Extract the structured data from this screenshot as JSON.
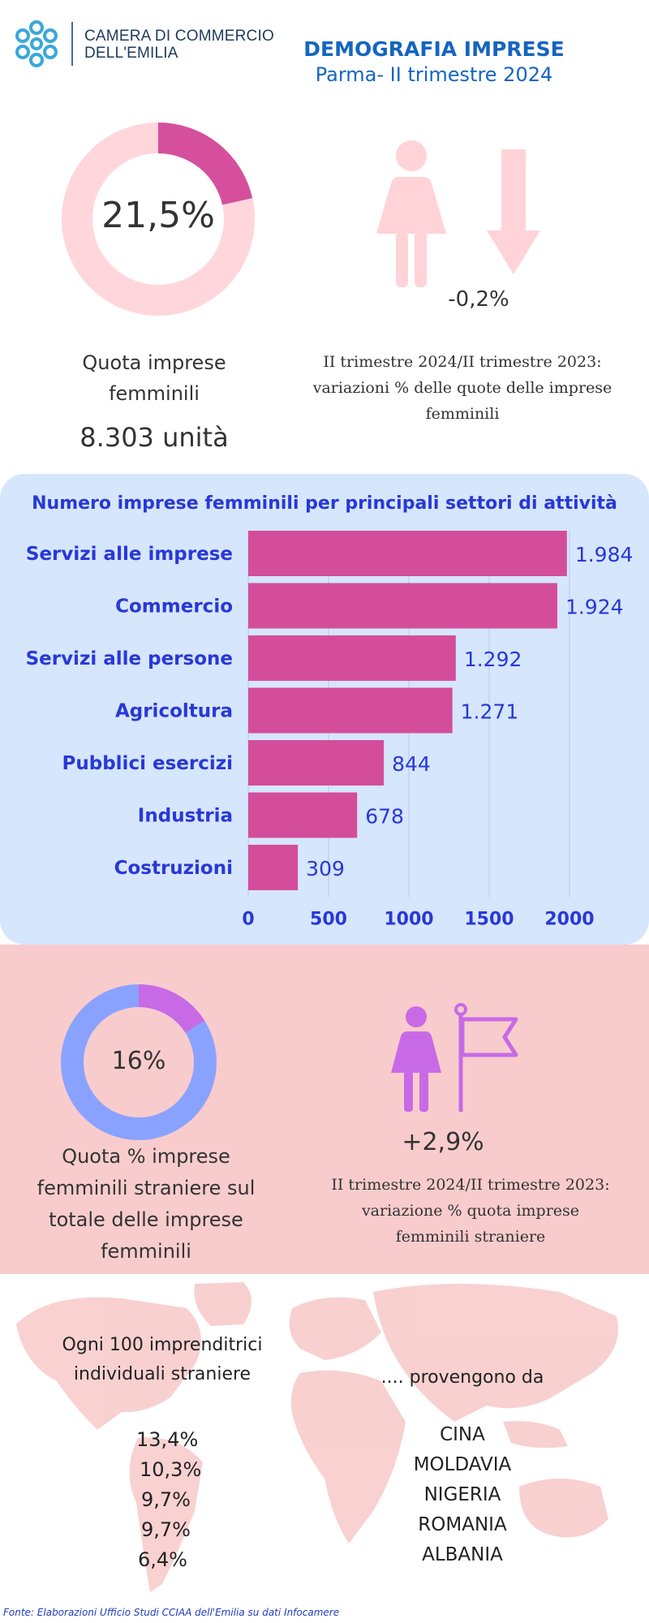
{
  "header": {
    "org_line1": "CAMERA DI COMMERCIO",
    "org_line2": "DELL'EMILIA",
    "title": "DEMOGRAFIA IMPRESE",
    "subtitle": "Parma- II trimestre 2024"
  },
  "female_share": {
    "value_text": "21,5%",
    "value": 21.5,
    "caption_line1": "Quota imprese",
    "caption_line2": "femminili",
    "units": "8.303 unità",
    "ring_color": "#d64f9c",
    "ring_bg": "#ffd6dc"
  },
  "female_change": {
    "delta": "-0,2%",
    "caption_line1": "II trimestre 2024/II trimestre 2023:",
    "caption_line2": "variazioni % delle quote delle imprese",
    "caption_line3": "femminili",
    "icon_color": "#ffd3d8"
  },
  "chart_data": {
    "type": "bar",
    "orientation": "horizontal",
    "title": "Numero imprese femminili per principali settori di attività",
    "categories": [
      "Servizi alle imprese",
      "Commercio",
      "Servizi alle persone",
      "Agricoltura",
      "Pubblici esercizi",
      "Industria",
      "Costruzioni"
    ],
    "values": [
      1984,
      1924,
      1292,
      1271,
      844,
      678,
      309
    ],
    "value_labels": [
      "1.984",
      "1.924",
      "1.292",
      "1.271",
      "844",
      "678",
      "309"
    ],
    "xlim": [
      0,
      2000
    ],
    "xticks": [
      "0",
      "500",
      "1000",
      "1500",
      "2000"
    ],
    "grid": true,
    "bar_color": "#d44d9b",
    "text_color": "#2838d8"
  },
  "foreign_share": {
    "value_text": "16%",
    "value": 16,
    "caption_line1": "Quota  % imprese",
    "caption_line2": "femminili straniere sul",
    "caption_line3": "totale delle imprese",
    "caption_line4": "femminili",
    "ring_color": "#c86ae6",
    "ring_bg": "#8aa2ff"
  },
  "foreign_change": {
    "delta": "+2,9%",
    "caption_line1": "II trimestre 2024/II trimestre 2023:",
    "caption_line2": "variazione % quota imprese",
    "caption_line3": "femminili straniere",
    "icon_color": "#c86ae6"
  },
  "origins": {
    "caption_line1": "Ogni 100 imprenditrici",
    "caption_line2": "individuali straniere",
    "arrive_caption": ".... provengono da",
    "items": [
      {
        "pct": "13,4%",
        "country": "CINA"
      },
      {
        "pct": "10,3%",
        "country": "MOLDAVIA"
      },
      {
        "pct": "9,7%",
        "country": "NIGERIA"
      },
      {
        "pct": "9,7%",
        "country": "ROMANIA"
      },
      {
        "pct": "6,4%",
        "country": "ALBANIA"
      }
    ]
  },
  "footer": {
    "source": "Fonte: Elaborazioni Ufficio Studi CCIAA dell'Emilia su dati Infocamere"
  }
}
